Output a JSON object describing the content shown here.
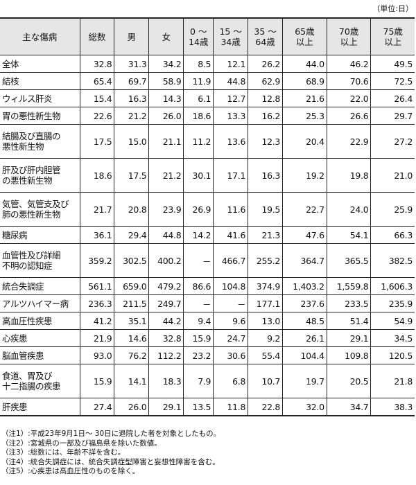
{
  "unit_label": "（単位:日）",
  "headers": [
    "主な傷病",
    "総数",
    "男",
    "女",
    "0 ～\n14歳",
    "15 ～\n34歳",
    "35 ～\n64歳",
    "65歳\n以上",
    "70歳\n以上",
    "75歳\n以上"
  ],
  "rows": [
    {
      "name": "全体",
      "values": [
        "32.8",
        "31.3",
        "34.2",
        "8.5",
        "12.1",
        "26.2",
        "44.0",
        "46.2",
        "49.5"
      ]
    },
    {
      "name": "結核",
      "values": [
        "65.4",
        "69.7",
        "58.9",
        "11.9",
        "44.8",
        "62.9",
        "68.9",
        "70.6",
        "72.5"
      ]
    },
    {
      "name": "ウィルス肝炎",
      "values": [
        "15.4",
        "16.3",
        "14.3",
        "6.1",
        "12.7",
        "12.8",
        "21.6",
        "22.0",
        "26.4"
      ]
    },
    {
      "name": "胃の悪性新生物",
      "values": [
        "22.6",
        "21.2",
        "26.0",
        "18.6",
        "13.3",
        "16.2",
        "25.3",
        "26.6",
        "29.7"
      ]
    },
    {
      "name": "結腸及び直腸の\n悪性新生物",
      "values": [
        "17.5",
        "15.0",
        "21.1",
        "11.2",
        "13.6",
        "12.3",
        "20.4",
        "22.9",
        "27.2"
      ]
    },
    {
      "name": "肝及び肝内胆管\nの悪性新生物",
      "values": [
        "18.6",
        "17.5",
        "21.2",
        "30.1",
        "17.1",
        "16.3",
        "19.2",
        "19.8",
        "21.0"
      ]
    },
    {
      "name": "気管、気管支及び\n肺の悪性新生物",
      "values": [
        "21.7",
        "20.8",
        "23.9",
        "26.9",
        "11.6",
        "19.5",
        "22.7",
        "24.0",
        "25.9"
      ]
    },
    {
      "name": "糖尿病",
      "values": [
        "36.1",
        "29.4",
        "44.8",
        "14.2",
        "41.6",
        "21.3",
        "47.6",
        "54.1",
        "66.3"
      ]
    },
    {
      "name": "血管性及び詳細\n不明の認知症",
      "values": [
        "359.2",
        "302.5",
        "400.2",
        "－",
        "466.7",
        "255.2",
        "364.7",
        "365.5",
        "382.5"
      ]
    },
    {
      "name": "統合失調症",
      "values": [
        "561.1",
        "659.0",
        "479.2",
        "86.6",
        "104.8",
        "374.9",
        "1,403.2",
        "1,559.8",
        "1,606.3"
      ]
    },
    {
      "name": "アルツハイマー病",
      "values": [
        "236.3",
        "211.5",
        "249.7",
        "－",
        "－",
        "177.1",
        "237.6",
        "233.5",
        "235.9"
      ]
    },
    {
      "name": "高血圧性疾患",
      "values": [
        "41.2",
        "35.1",
        "44.2",
        "9.4",
        "9.6",
        "13.0",
        "48.5",
        "51.4",
        "54.9"
      ]
    },
    {
      "name": "心疾患",
      "values": [
        "21.9",
        "14.6",
        "32.8",
        "15.9",
        "24.7",
        "9.2",
        "26.1",
        "29.1",
        "34.5"
      ]
    },
    {
      "name": "脳血管疾患",
      "values": [
        "93.0",
        "76.2",
        "112.2",
        "23.2",
        "30.6",
        "55.4",
        "104.4",
        "109.8",
        "120.5"
      ]
    },
    {
      "name": "食道、胃及び\n十二指腸の疾患",
      "values": [
        "15.9",
        "14.1",
        "18.3",
        "7.9",
        "6.8",
        "10.7",
        "19.7",
        "20.5",
        "21.8"
      ]
    },
    {
      "name": "肝疾患",
      "values": [
        "27.4",
        "26.0",
        "29.1",
        "13.5",
        "11.8",
        "22.8",
        "32.0",
        "34.7",
        "38.3"
      ]
    }
  ],
  "notes": [
    "（注1）:平成23年9月1日～ 30日に退院した者を対象としたもの。",
    "（注2）:宮城県の一部及び福島県を除いた数値。",
    "（注3）:総数には、年齢不詳を含む。",
    "（注4）:統合失調症には、統合失調症型障害と妄想性障害を含む。",
    "（注5）:心疾患は高血圧性のものを除く。"
  ]
}
